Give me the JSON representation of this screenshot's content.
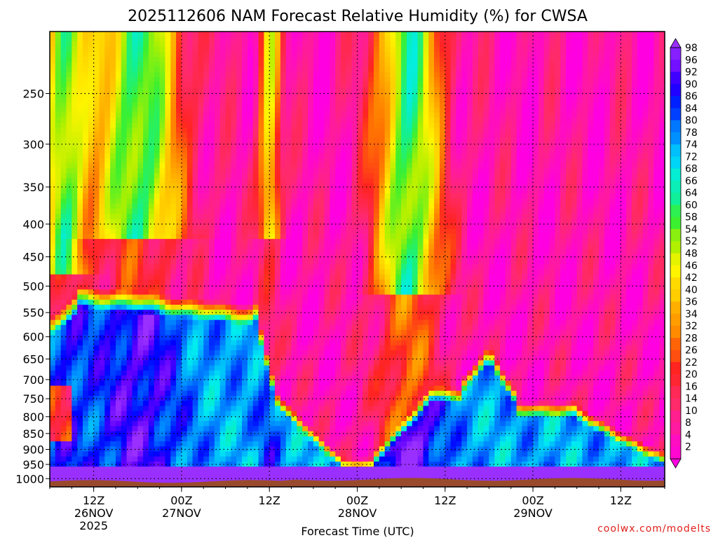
{
  "chart_data": {
    "type": "heatmap",
    "title": "2025112606 NAM Forecast Relative Humidity (%) for CWSA",
    "xlabel": "Forecast Time (UTC)",
    "ylabel": "",
    "x_ticks": [
      {
        "hour": 6,
        "lines": [
          "12Z",
          "26NOV",
          "2025"
        ]
      },
      {
        "hour": 18,
        "lines": [
          "00Z",
          "27NOV"
        ]
      },
      {
        "hour": 30,
        "lines": [
          "12Z"
        ]
      },
      {
        "hour": 42,
        "lines": [
          "00Z",
          "28NOV"
        ]
      },
      {
        "hour": 54,
        "lines": [
          "12Z"
        ]
      },
      {
        "hour": 66,
        "lines": [
          "00Z",
          "29NOV"
        ]
      },
      {
        "hour": 78,
        "lines": [
          "12Z"
        ]
      }
    ],
    "xlim": [
      0,
      84
    ],
    "y_axis": "pressure (hPa), inverted, log scale",
    "y_ticks": [
      "250",
      "300",
      "350",
      "400",
      "450",
      "500",
      "550",
      "600",
      "650",
      "700",
      "750",
      "800",
      "850",
      "900",
      "950",
      "1000"
    ],
    "ylim": [
      1030,
      200
    ],
    "grid": true,
    "colorbar": {
      "levels": [
        "98",
        "96",
        "92",
        "90",
        "86",
        "84",
        "80",
        "78",
        "74",
        "72",
        "68",
        "66",
        "64",
        "60",
        "58",
        "54",
        "52",
        "48",
        "46",
        "42",
        "40",
        "36",
        "34",
        "32",
        "28",
        "26",
        "22",
        "20",
        "16",
        "14",
        "10",
        "8",
        "4",
        "2"
      ],
      "placement": "right"
    },
    "ground": "terrain below ~1010 hPa",
    "watermark": "coolwx.com/modelts"
  }
}
